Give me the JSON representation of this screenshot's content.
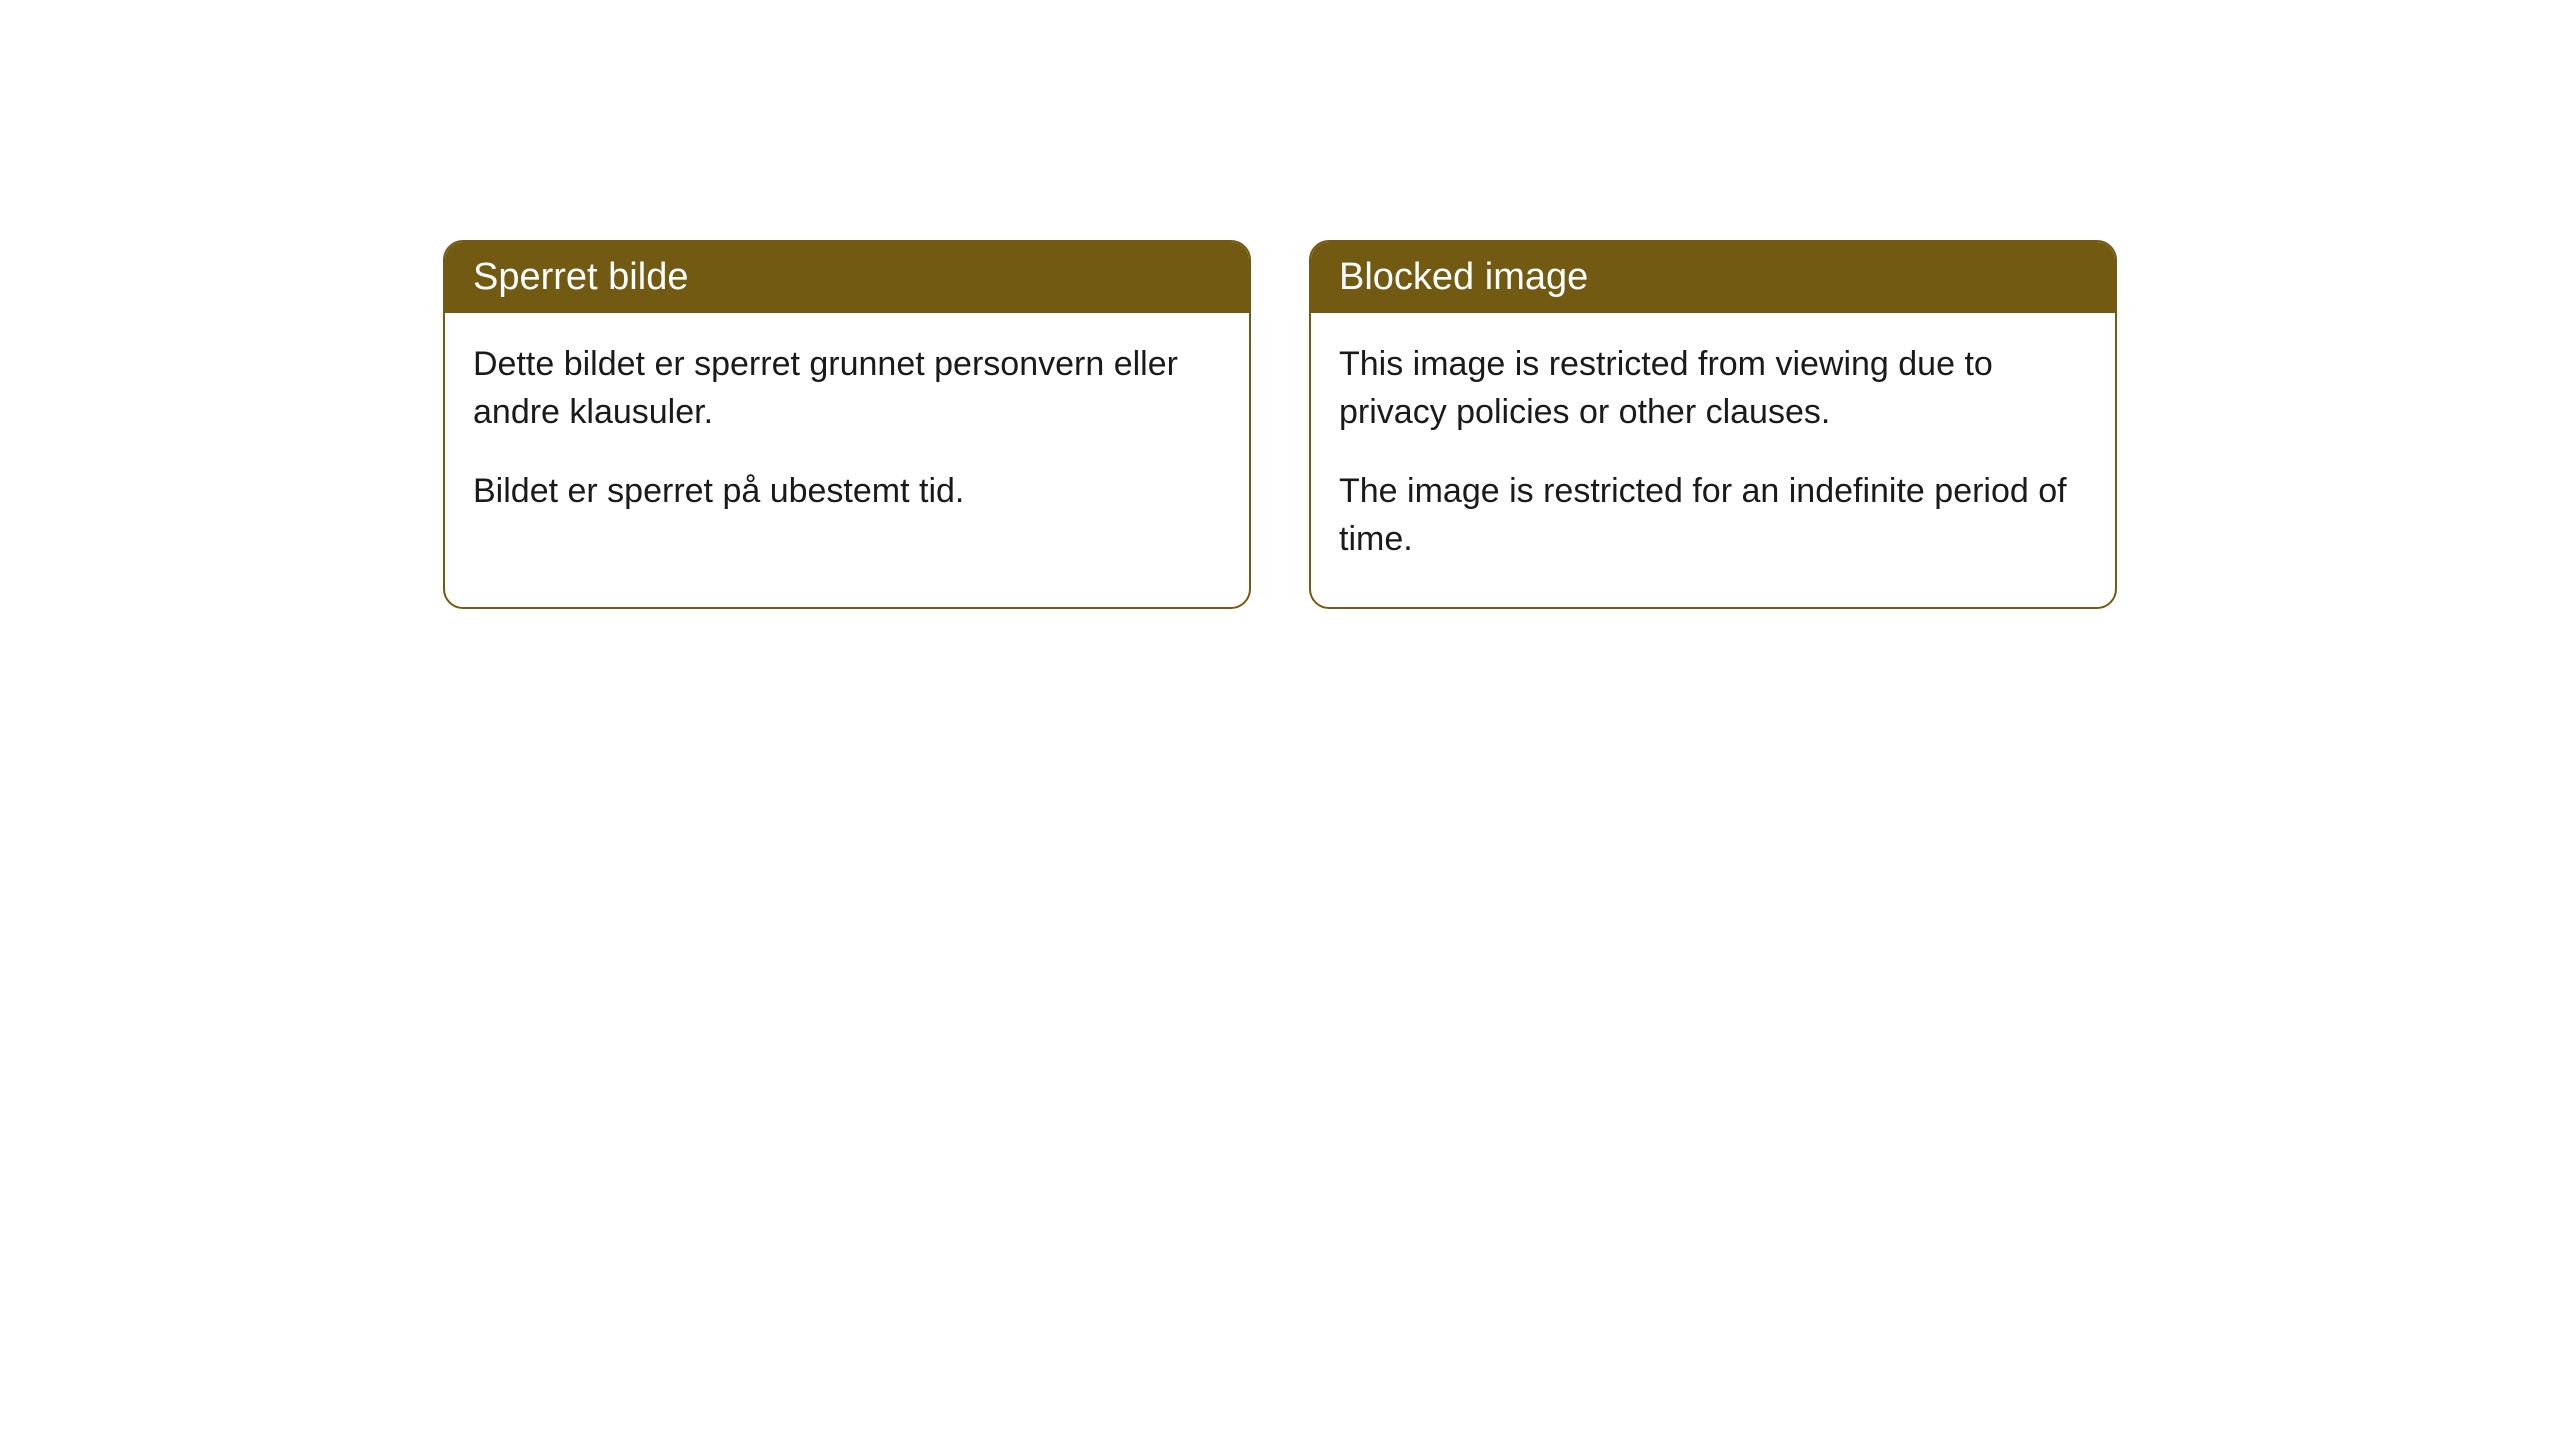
{
  "cards": [
    {
      "title": "Sperret bilde",
      "paragraph1": "Dette bildet er sperret grunnet personvern eller andre klausuler.",
      "paragraph2": "Bildet er sperret på ubestemt tid."
    },
    {
      "title": "Blocked image",
      "paragraph1": "This image is restricted from viewing due to privacy policies or other clauses.",
      "paragraph2": "The image is restricted for an indefinite period of time."
    }
  ],
  "style": {
    "header_bg_color": "#735a13",
    "header_text_color": "#ffffff",
    "border_color": "#735a13",
    "body_text_color": "#1a1a1a",
    "background_color": "#ffffff",
    "border_radius": 20,
    "header_fontsize": 38,
    "body_fontsize": 34
  }
}
